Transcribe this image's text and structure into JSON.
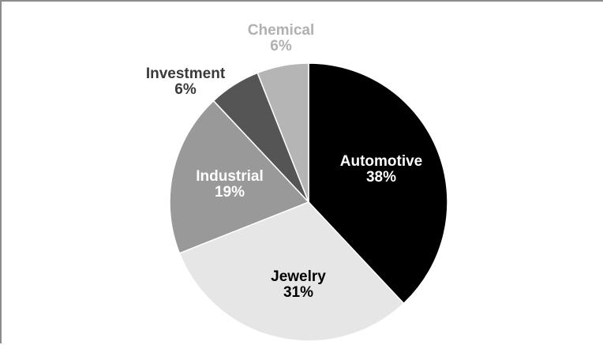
{
  "chart_data": {
    "type": "pie",
    "slices": [
      {
        "label": "Automotive",
        "value": 38,
        "value_text": "38%",
        "color": "#000000",
        "label_color": "#ffffff"
      },
      {
        "label": "Jewelry",
        "value": 31,
        "value_text": "31%",
        "color": "#e6e6e6",
        "label_color": "#000000"
      },
      {
        "label": "Industrial",
        "value": 19,
        "value_text": "19%",
        "color": "#999999",
        "label_color": "#ffffff"
      },
      {
        "label": "Investment",
        "value": 6,
        "value_text": "6%",
        "color": "#555555",
        "label_color": "#3a3a3a"
      },
      {
        "label": "Chemical",
        "value": 6,
        "value_text": "6%",
        "color": "#b5b5b5",
        "label_color": "#b0b0b0"
      }
    ],
    "start_angle": "12 o'clock",
    "direction": "clockwise",
    "legend": "none",
    "data_labels": "category and percentage"
  }
}
